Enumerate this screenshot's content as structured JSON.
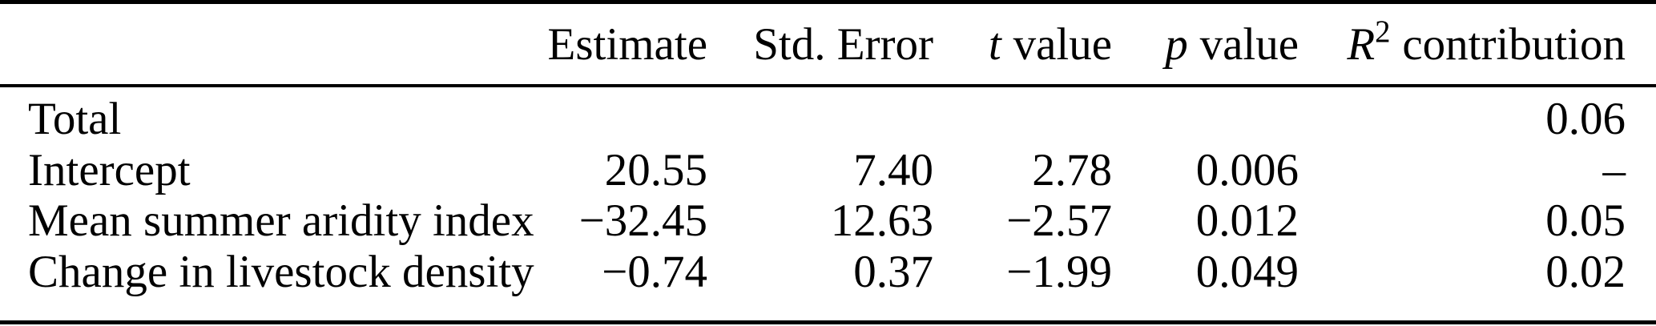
{
  "table": {
    "columns": {
      "label": "",
      "estimate": "Estimate",
      "std_error": "Std. Error",
      "t": {
        "math": "t",
        "rest": "value"
      },
      "p": {
        "math": "p",
        "rest": "value"
      },
      "r2": {
        "math": "R",
        "sup": "2",
        "rest": "contribution"
      }
    },
    "rows": [
      {
        "label": "Total",
        "estimate": "",
        "std_error": "",
        "t_value": "",
        "p_value": "",
        "r2_contribution": "0.06"
      },
      {
        "label": "Intercept",
        "estimate": "20.55",
        "std_error": "7.40",
        "t_value": "2.78",
        "p_value": "0.006",
        "r2_contribution": "–"
      },
      {
        "label": "Mean summer aridity index",
        "estimate": "−32.45",
        "std_error": "12.63",
        "t_value": "−2.57",
        "p_value": "0.012",
        "r2_contribution": "0.05"
      },
      {
        "label": "Change in livestock density",
        "estimate": "−0.74",
        "std_error": "0.37",
        "t_value": "−1.99",
        "p_value": "0.049",
        "r2_contribution": "0.02"
      }
    ]
  },
  "colors": {
    "text": "#000000",
    "rule": "#000000",
    "background": "#ffffff"
  }
}
